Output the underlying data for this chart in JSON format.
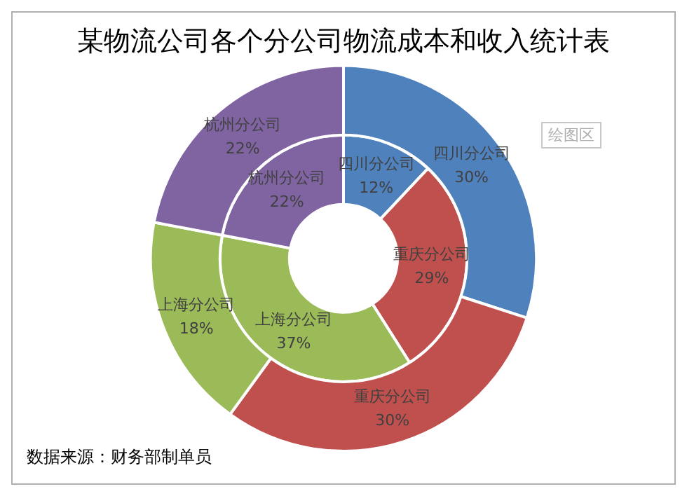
{
  "chart_data": {
    "type": "donut",
    "title": "某物流公司各个分公司物流成本和收入统计表",
    "categories": [
      "四川分公司",
      "重庆分公司",
      "上海分公司",
      "杭州分公司"
    ],
    "colors": [
      "#4f81bd",
      "#c0504d",
      "#9bbb59",
      "#8064a2"
    ],
    "series": [
      {
        "values": [
          30,
          30,
          18,
          22
        ],
        "value_labels": [
          "30%",
          "30%",
          "18%",
          "22%"
        ]
      },
      {
        "values": [
          12,
          29,
          37,
          22
        ],
        "value_labels": [
          "12%",
          "29%",
          "37%",
          "22%"
        ]
      }
    ],
    "legend": false,
    "annotations": [
      "绘图区",
      "数据来源：财务部制单员"
    ]
  }
}
